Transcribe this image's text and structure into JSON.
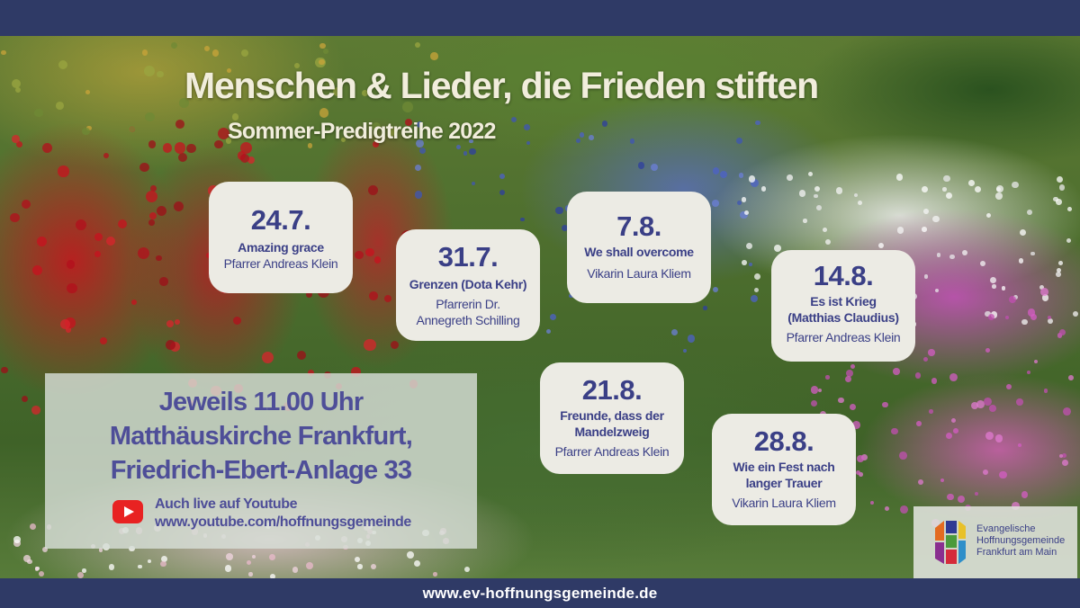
{
  "title": "Menschen & Lieder, die Frieden stiften",
  "subtitle": "Sommer-Predigtreihe 2022",
  "events": [
    {
      "date": "24.7.",
      "topic": "Amazing grace",
      "preacher": "Pfarrer Andreas Klein"
    },
    {
      "date": "31.7.",
      "topic": "Grenzen (Dota Kehr)",
      "preacher": "Pfarrerin Dr.\nAnnegreth Schilling"
    },
    {
      "date": "7.8.",
      "topic": "We shall overcome",
      "preacher": "Vikarin Laura Kliem"
    },
    {
      "date": "14.8.",
      "topic": "Es ist Krieg\n(Matthias Claudius)",
      "preacher": "Pfarrer Andreas Klein"
    },
    {
      "date": "21.8.",
      "topic": "Freunde, dass der\nMandelzweig",
      "preacher": "Pfarrer Andreas Klein"
    },
    {
      "date": "28.8.",
      "topic": "Wie ein Fest nach\nlanger Trauer",
      "preacher": "Vikarin Laura Kliem"
    }
  ],
  "info": {
    "time": "Jeweils 11.00 Uhr",
    "church": "Matthäuskirche Frankfurt,",
    "address": "Friedrich-Ebert-Anlage 33",
    "live_label": "Auch live auf Youtube",
    "youtube_url": "www.youtube.com/hoffnungsgemeinde"
  },
  "logo": {
    "text": "Evangelische\nHoffnungsgemeinde\nFrankfurt am Main"
  },
  "footer": {
    "url": "www.ev-hoffnungsgemeinde.de"
  },
  "colors": {
    "bar": "#2f3a66",
    "card": "#ecebe4",
    "text_blue": "#3a3f86",
    "youtube_red": "#e82222"
  }
}
